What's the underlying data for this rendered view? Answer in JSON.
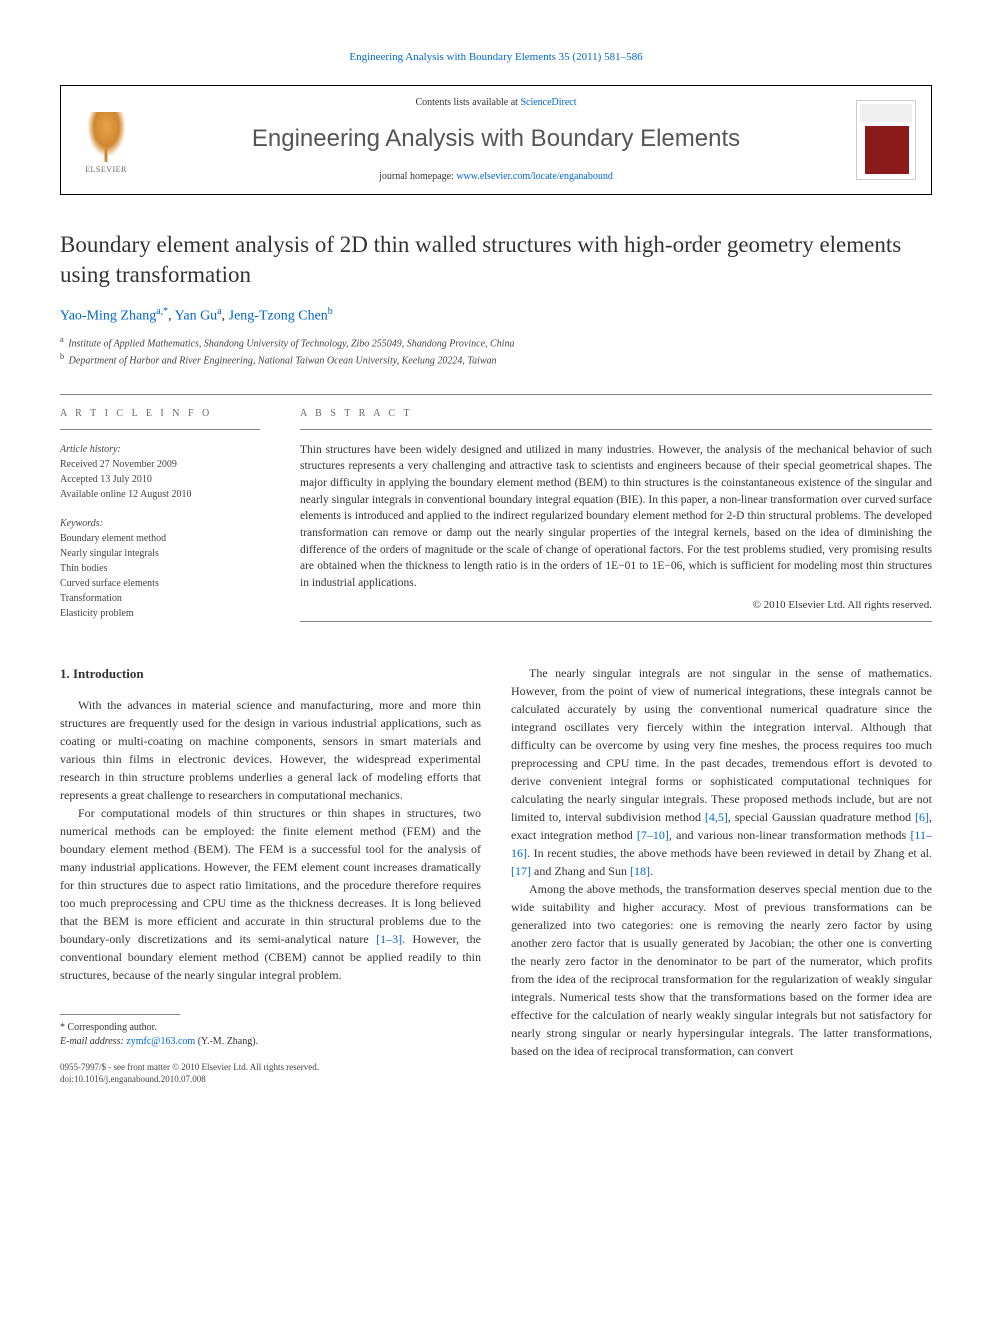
{
  "top_citation": "Engineering Analysis with Boundary Elements 35 (2011) 581–586",
  "header": {
    "publisher_name": "ELSEVIER",
    "contents_prefix": "Contents lists available at ",
    "contents_link": "ScienceDirect",
    "journal_name": "Engineering Analysis with Boundary Elements",
    "homepage_prefix": "journal homepage: ",
    "homepage_url": "www.elsevier.com/locate/enganabound"
  },
  "title": "Boundary element analysis of 2D thin walled structures with high-order geometry elements using transformation",
  "authors": [
    {
      "name": "Yao-Ming Zhang",
      "affil": "a,",
      "corr": "*"
    },
    {
      "name": "Yan Gu",
      "affil": "a",
      "corr": ""
    },
    {
      "name": "Jeng-Tzong Chen",
      "affil": "b",
      "corr": ""
    }
  ],
  "affiliations": [
    {
      "mark": "a",
      "text": "Institute of Applied Mathematics, Shandong University of Technology, Zibo 255049, Shandong Province, China"
    },
    {
      "mark": "b",
      "text": "Department of Harbor and River Engineering, National Taiwan Ocean University, Keelung 20224, Taiwan"
    }
  ],
  "info_label": "A R T I C L E  I N F O",
  "abstract_label": "A B S T R A C T",
  "history": {
    "label": "Article history:",
    "received": "Received 27 November 2009",
    "accepted": "Accepted 13 July 2010",
    "online": "Available online 12 August 2010"
  },
  "keywords": {
    "label": "Keywords:",
    "items": [
      "Boundary element method",
      "Nearly singular integrals",
      "Thin bodies",
      "Curved surface elements",
      "Transformation",
      "Elasticity problem"
    ]
  },
  "abstract": "Thin structures have been widely designed and utilized in many industries. However, the analysis of the mechanical behavior of such structures represents a very challenging and attractive task to scientists and engineers because of their special geometrical shapes. The major difficulty in applying the boundary element method (BEM) to thin structures is the coinstantaneous existence of the singular and nearly singular integrals in conventional boundary integral equation (BIE). In this paper, a non-linear transformation over curved surface elements is introduced and applied to the indirect regularized boundary element method for 2-D thin structural problems. The developed transformation can remove or damp out the nearly singular properties of the integral kernels, based on the idea of diminishing the difference of the orders of magnitude or the scale of change of operational factors. For the test problems studied, very promising results are obtained when the thickness to length ratio is in the orders of 1E−01 to 1E−06, which is sufficient for modeling most thin structures in industrial applications.",
  "copyright": "© 2010 Elsevier Ltd. All rights reserved.",
  "intro_heading": "1.  Introduction",
  "col1": {
    "p1": "With the advances in material science and manufacturing, more and more thin structures are frequently used for the design in various industrial applications, such as coating or multi-coating on machine components, sensors in smart materials and various thin films in electronic devices. However, the widespread experimental research in thin structure problems underlies a general lack of modeling efforts that represents a great challenge to researchers in computational mechanics.",
    "p2a": "For computational models of thin structures or thin shapes in structures, two numerical methods can be employed: the finite element method (FEM) and the boundary element method (BEM). The FEM is a successful tool for the analysis of many industrial applications. However, the FEM element count increases dramatically for thin structures due to aspect ratio limitations, and the procedure therefore requires too much preprocessing and CPU time as the thickness decreases. It is long believed that the BEM is more efficient and accurate in thin structural problems due to the boundary-only discretizations and its semi-analytical nature ",
    "p2ref": "[1–3]",
    "p2b": ". However, the conventional boundary element method (CBEM) cannot be applied readily to thin structures, because of the nearly singular integral problem."
  },
  "col2": {
    "p1a": "The nearly singular integrals are not singular in the sense of mathematics. However, from the point of view of numerical integrations, these integrals cannot be calculated accurately by using the conventional numerical quadrature since the integrand oscillates very fiercely within the integration interval. Although that difficulty can be overcome by using very fine meshes, the process requires too much preprocessing and CPU time. In the past decades, tremendous effort is devoted to derive convenient integral forms or sophisticated computational techniques for calculating the nearly singular integrals. These proposed methods include, but are not limited to, interval subdivision method ",
    "p1r1": "[4,5]",
    "p1b": ", special Gaussian quadrature method ",
    "p1r2": "[6]",
    "p1c": ", exact integration method ",
    "p1r3": "[7–10]",
    "p1d": ", and various non-linear transformation methods ",
    "p1r4": "[11–16]",
    "p1e": ". In recent studies, the above methods have been reviewed in detail by Zhang et al. ",
    "p1r5": "[17]",
    "p1f": " and Zhang and Sun ",
    "p1r6": "[18]",
    "p1g": ".",
    "p2": "Among the above methods, the transformation deserves special mention due to the wide suitability and higher accuracy. Most of previous transformations can be generalized into two categories: one is removing the nearly zero factor by using another zero factor that is usually generated by Jacobian; the other one is converting the nearly zero factor in the denominator to be part of the numerator, which profits from the idea of the reciprocal transformation for the regularization of weakly singular integrals. Numerical tests show that the transformations based on the former idea are effective for the calculation of nearly weakly singular integrals but not satisfactory for nearly strong singular or nearly hypersingular integrals. The latter transformations, based on the idea of reciprocal transformation, can convert"
  },
  "footnote": {
    "corr": "* Corresponding author.",
    "email_label": "E-mail address: ",
    "email": "zymfc@163.com",
    "email_suffix": " (Y.-M. Zhang)."
  },
  "footer": {
    "line1": "0955-7997/$ - see front matter © 2010 Elsevier Ltd. All rights reserved.",
    "line2": "doi:10.1016/j.enganabound.2010.07.008"
  },
  "colors": {
    "link": "#0066cc",
    "text": "#333333",
    "border": "#000000"
  }
}
